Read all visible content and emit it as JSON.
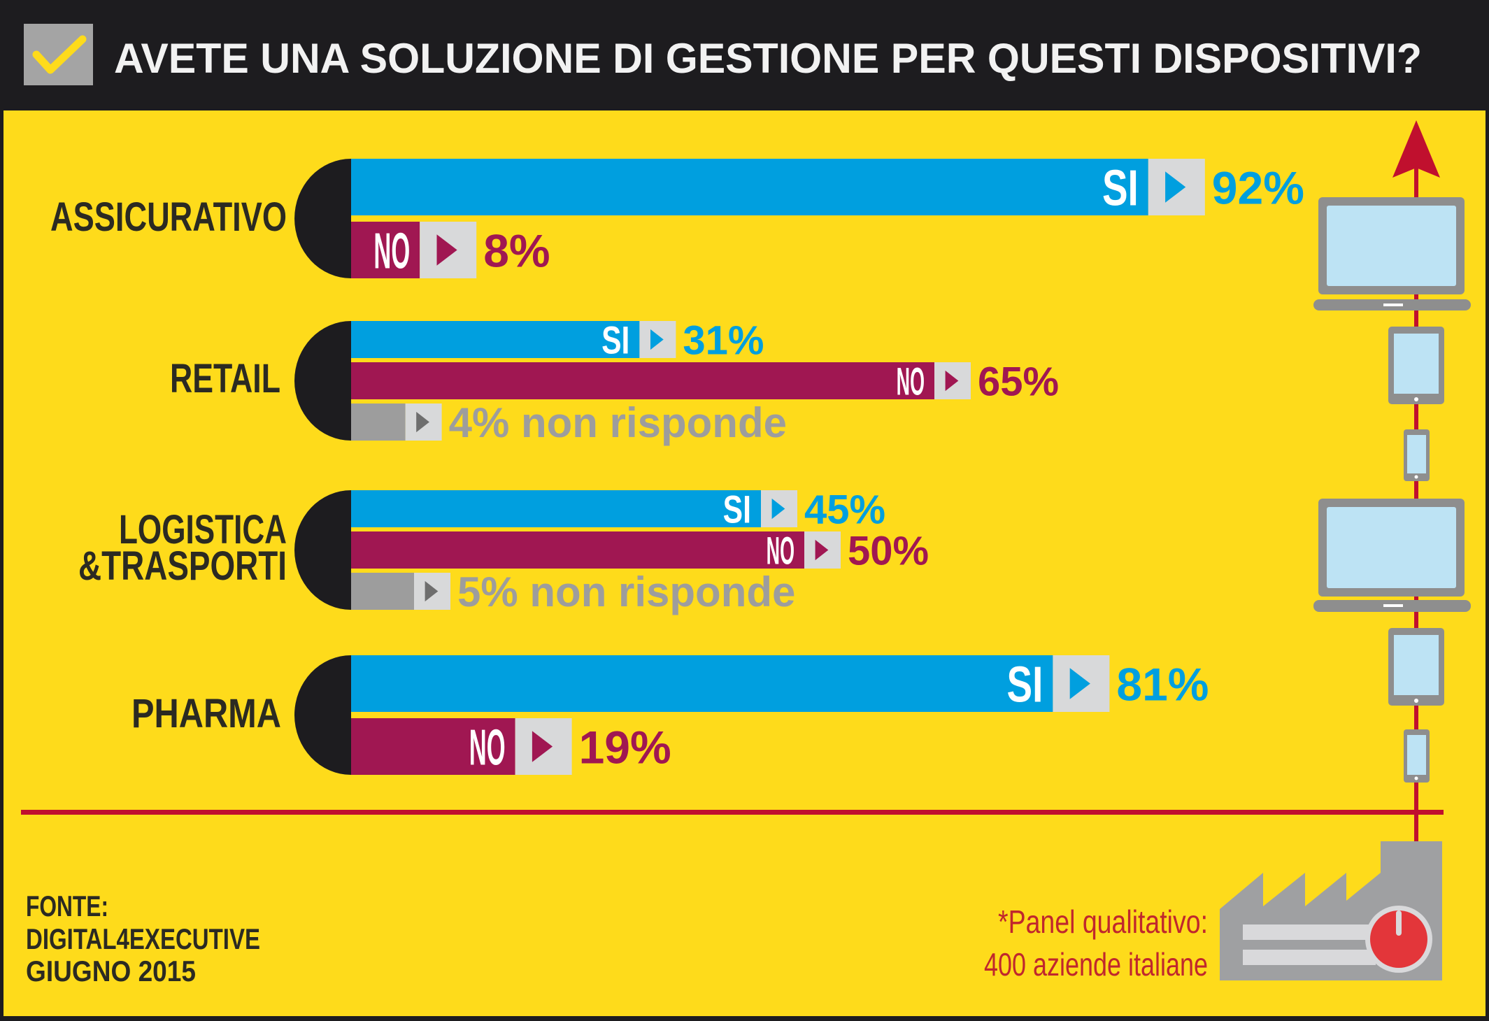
{
  "header": {
    "title": "AVETE UNA SOLUZIONE DI GESTIONE PER QUESTI DISPOSITIVI?",
    "icon": "checkbox-check-icon"
  },
  "chart_data": {
    "type": "bar",
    "title": "AVETE UNA SOLUZIONE DI GESTIONE PER QUESTI DISPOSITIVI?",
    "unit": "%",
    "colors": {
      "SI": "#009fdf",
      "NO": "#a01752",
      "NR": "#9d9d9d",
      "box": "#d8d9da"
    },
    "groups": [
      {
        "category": "ASSICURATIVO",
        "label_lines": [
          "ASSICURATIVO"
        ],
        "bars": [
          {
            "key": "SI",
            "label": "SI",
            "value": 92,
            "value_text": "92%"
          },
          {
            "key": "NO",
            "label": "NO",
            "value": 8,
            "value_text": "8%"
          }
        ]
      },
      {
        "category": "RETAIL",
        "label_lines": [
          "RETAIL"
        ],
        "bars": [
          {
            "key": "SI",
            "label": "SI",
            "value": 31,
            "value_text": "31%"
          },
          {
            "key": "NO",
            "label": "NO",
            "value": 65,
            "value_text": "65%"
          },
          {
            "key": "NR",
            "label": "",
            "value": 4,
            "value_text": "4% non risponde"
          }
        ]
      },
      {
        "category": "LOGISTICA &TRASPORTI",
        "label_lines": [
          "LOGISTICA",
          "&TRASPORTI"
        ],
        "bars": [
          {
            "key": "SI",
            "label": "SI",
            "value": 45,
            "value_text": "45%"
          },
          {
            "key": "NO",
            "label": "NO",
            "value": 50,
            "value_text": "50%"
          },
          {
            "key": "NR",
            "label": "",
            "value": 5,
            "value_text": "5% non risponde"
          }
        ]
      },
      {
        "category": "PHARMA",
        "label_lines": [
          "PHARMA"
        ],
        "bars": [
          {
            "key": "SI",
            "label": "SI",
            "value": 81,
            "value_text": "81%"
          },
          {
            "key": "NO",
            "label": "NO",
            "value": 19,
            "value_text": "19%"
          }
        ]
      }
    ]
  },
  "footer": {
    "source_lines": [
      "FONTE:",
      "DIGITAL4EXECUTIVE",
      "GIUGNO 2015"
    ],
    "note_lines": [
      "*Panel qualitativo:",
      "400 aziende italiane"
    ]
  },
  "icons": [
    "laptop-icon",
    "tablet-icon",
    "smartphone-icon",
    "factory-icon",
    "arrow-up-icon"
  ]
}
